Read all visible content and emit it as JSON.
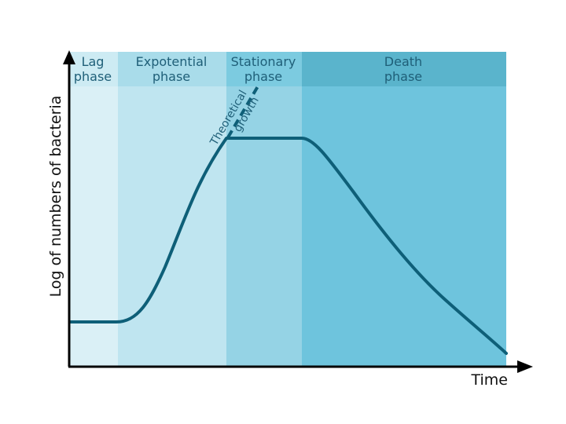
{
  "diagram": {
    "y_axis_label": "Log of numbers of bacteria",
    "x_axis_label": "Time",
    "phases": [
      {
        "key": "lag",
        "line1": "Lag",
        "line2": "phase",
        "header_color": "#cdebf3",
        "body_color": "#daf0f6"
      },
      {
        "key": "exponential",
        "line1": "Expotential",
        "line2": "phase",
        "header_color": "#a9dcea",
        "body_color": "#bfe5f0"
      },
      {
        "key": "stationary",
        "line1": "Stationary",
        "line2": "phase",
        "header_color": "#7ccbe0",
        "body_color": "#95d3e5"
      },
      {
        "key": "death",
        "line1": "Death",
        "line2": "phase",
        "header_color": "#5ab4cc",
        "body_color": "#6ec4dd"
      }
    ],
    "theoretical_growth": {
      "line1": "Theoretical",
      "line2": "growth"
    },
    "colors": {
      "curve": "#0e5f78",
      "axis": "#000000",
      "text": "#1f5f78"
    }
  }
}
